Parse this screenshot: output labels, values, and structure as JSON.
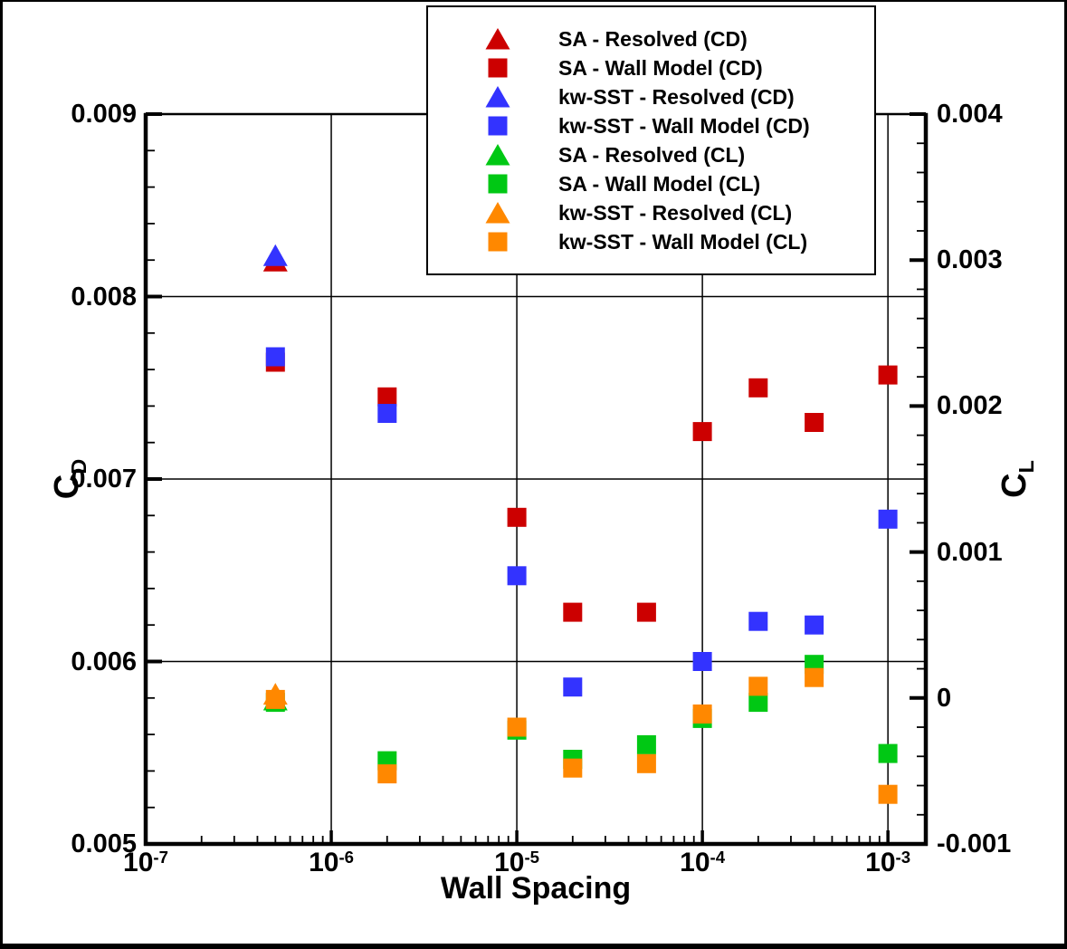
{
  "chart_data": {
    "type": "scatter",
    "title": "",
    "xlabel": "Wall Spacing",
    "ylabel_left": {
      "text": "C",
      "sub": "D"
    },
    "ylabel_right": {
      "text": "C",
      "sub": "L"
    },
    "x_axis": {
      "scale": "log",
      "min": 1e-07,
      "max": 0.0016,
      "ticks": [
        {
          "value": 1e-07,
          "base": "10",
          "exp": "-7"
        },
        {
          "value": 1e-06,
          "base": "10",
          "exp": "-6"
        },
        {
          "value": 1e-05,
          "base": "10",
          "exp": "-5"
        },
        {
          "value": 0.0001,
          "base": "10",
          "exp": "-4"
        },
        {
          "value": 0.001,
          "base": "10",
          "exp": "-3"
        }
      ]
    },
    "y_left": {
      "axis_name": "CD",
      "min": 0.005,
      "max": 0.009,
      "minor_step": 0.0002,
      "ticks": [
        {
          "value": 0.009,
          "label": "0.009"
        },
        {
          "value": 0.008,
          "label": "0.008"
        },
        {
          "value": 0.007,
          "label": "0.007"
        },
        {
          "value": 0.006,
          "label": "0.006"
        },
        {
          "value": 0.005,
          "label": "0.005"
        }
      ]
    },
    "y_right": {
      "axis_name": "CL",
      "min": -0.001,
      "max": 0.004,
      "minor_step": 0.0002,
      "ticks": [
        {
          "value": 0.004,
          "label": "0.004"
        },
        {
          "value": 0.003,
          "label": "0.003"
        },
        {
          "value": 0.002,
          "label": "0.002"
        },
        {
          "value": 0.001,
          "label": "0.001"
        },
        {
          "value": 0,
          "label": "0"
        },
        {
          "value": -0.001,
          "label": "-0.001"
        }
      ]
    },
    "grid": {
      "vertical_at": [
        1e-06,
        1e-05,
        0.0001,
        0.001
      ],
      "horizontal_at_cd": [
        0.008,
        0.007,
        0.006
      ]
    },
    "colors": {
      "red": "#cc0000",
      "blue": "#3333ff",
      "green": "#00c814",
      "orange": "#ff8800"
    },
    "legend_position": "top-center",
    "series": [
      {
        "name": "sa-resolved-cd",
        "label": "SA - Resolved (CD)",
        "marker": "triangle",
        "color": "red",
        "axis": "left",
        "points": [
          [
            5e-07,
            0.00819
          ]
        ]
      },
      {
        "name": "sa-wallmodel-cd",
        "label": "SA - Wall Model (CD)",
        "marker": "square",
        "color": "red",
        "axis": "left",
        "points": [
          [
            5e-07,
            0.00764
          ],
          [
            2e-06,
            0.00745
          ],
          [
            1e-05,
            0.00679
          ],
          [
            2e-05,
            0.00627
          ],
          [
            5e-05,
            0.00627
          ],
          [
            0.0001,
            0.00726
          ],
          [
            0.0002,
            0.0075
          ],
          [
            0.0004,
            0.00731
          ],
          [
            0.001,
            0.00757
          ]
        ]
      },
      {
        "name": "kwsst-resolved-cd",
        "label": "kw-SST - Resolved (CD)",
        "marker": "triangle",
        "color": "blue",
        "axis": "left",
        "points": [
          [
            5e-07,
            0.00822
          ]
        ]
      },
      {
        "name": "kwsst-wallmodel-cd",
        "label": "kw-SST - Wall Model (CD)",
        "marker": "square",
        "color": "blue",
        "axis": "left",
        "points": [
          [
            5e-07,
            0.00767
          ],
          [
            2e-06,
            0.00736
          ],
          [
            1e-05,
            0.00647
          ],
          [
            2e-05,
            0.00586
          ],
          [
            0.0001,
            0.006
          ],
          [
            0.0002,
            0.00622
          ],
          [
            0.0004,
            0.0062
          ],
          [
            0.001,
            0.00678
          ]
        ]
      },
      {
        "name": "sa-resolved-cl",
        "label": "SA - Resolved (CL)",
        "marker": "triangle",
        "color": "green",
        "axis": "right",
        "points": [
          [
            5e-07,
            -2e-05
          ]
        ]
      },
      {
        "name": "sa-wallmodel-cl",
        "label": "SA - Wall Model (CL)",
        "marker": "square",
        "color": "green",
        "axis": "right",
        "points": [
          [
            5e-07,
            -3e-05
          ],
          [
            2e-06,
            -0.00043
          ],
          [
            1e-05,
            -0.00022
          ],
          [
            2e-05,
            -0.00042
          ],
          [
            5e-05,
            -0.00032
          ],
          [
            0.0001,
            -0.00014
          ],
          [
            0.0002,
            -3e-05
          ],
          [
            0.0004,
            0.00023
          ],
          [
            0.001,
            -0.00038
          ]
        ]
      },
      {
        "name": "kwsst-resolved-cl",
        "label": "kw-SST - Resolved (CL)",
        "marker": "triangle",
        "color": "orange",
        "axis": "right",
        "points": [
          [
            5e-07,
            2e-05
          ]
        ]
      },
      {
        "name": "kwsst-wallmodel-cl",
        "label": "kw-SST - Wall Model (CL)",
        "marker": "square",
        "color": "orange",
        "axis": "right",
        "points": [
          [
            5e-07,
            -1e-05
          ],
          [
            2e-06,
            -0.00052
          ],
          [
            1e-05,
            -0.0002
          ],
          [
            2e-05,
            -0.00048
          ],
          [
            5e-05,
            -0.00045
          ],
          [
            0.0001,
            -0.00011
          ],
          [
            0.0002,
            8e-05
          ],
          [
            0.0004,
            0.00014
          ],
          [
            0.001,
            -0.00066
          ]
        ]
      }
    ]
  }
}
